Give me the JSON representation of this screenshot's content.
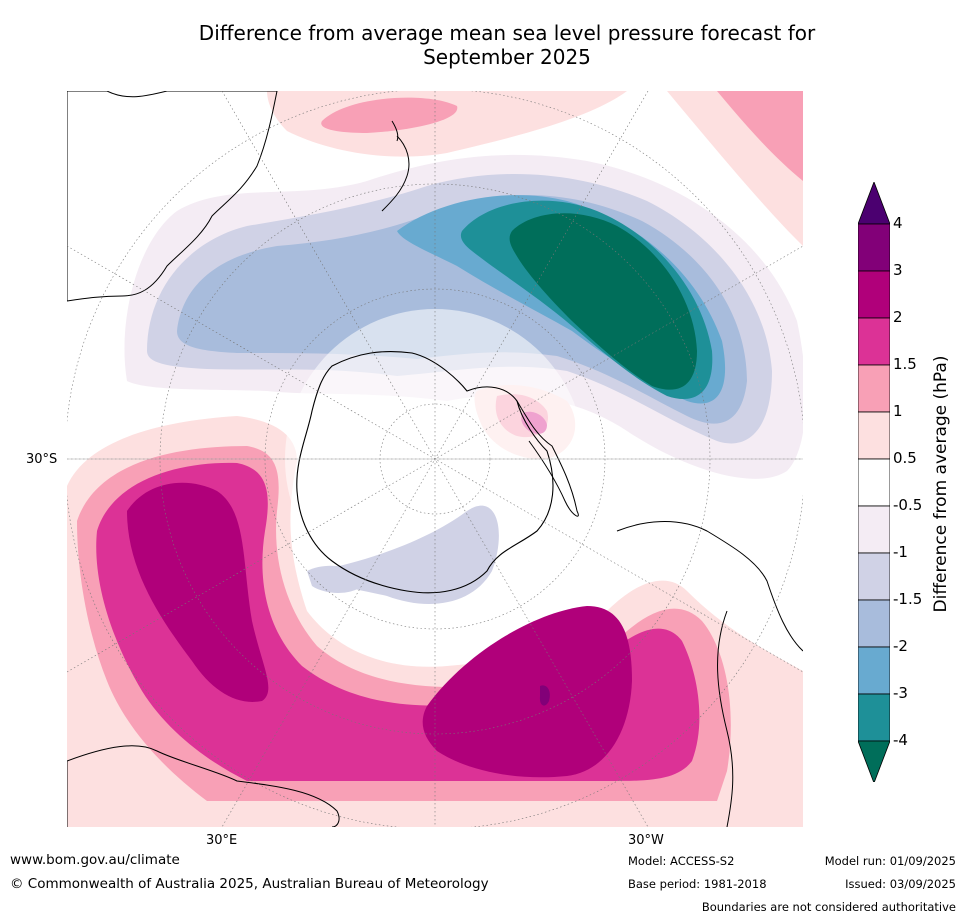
{
  "title_line1": "Difference from average mean sea level pressure forecast for",
  "title_line2": "September 2025",
  "axis_labels": {
    "left": "30°S",
    "bottom_left": "30°E",
    "bottom_right": "30°W"
  },
  "colorbar": {
    "title": "Difference from average (hPa)",
    "ticks": [
      "4",
      "3",
      "2",
      "1.5",
      "1",
      "0.5",
      "-0.5",
      "-1",
      "-1.5",
      "-2",
      "-3",
      "-4"
    ],
    "colors": [
      "#4b0070",
      "#820078",
      "#b0007a",
      "#dc3296",
      "#f8a0b6",
      "#fde0e0",
      "#ffffff",
      "#f4ecf4",
      "#d0d2e6",
      "#a8bcdc",
      "#68aad0",
      "#1e9098",
      "#006e5a"
    ]
  },
  "footer": {
    "website": "www.bom.gov.au/climate",
    "copyright": "© Commonwealth of Australia 2025, Australian Bureau of Meteorology",
    "model": "Model: ACCESS-S2",
    "base_period": "Base period: 1981-2018",
    "model_run": "Model run: 01/09/2025",
    "issued": "Issued: 03/09/2025",
    "disclaimer": "Boundaries are not considered authoritative"
  }
}
